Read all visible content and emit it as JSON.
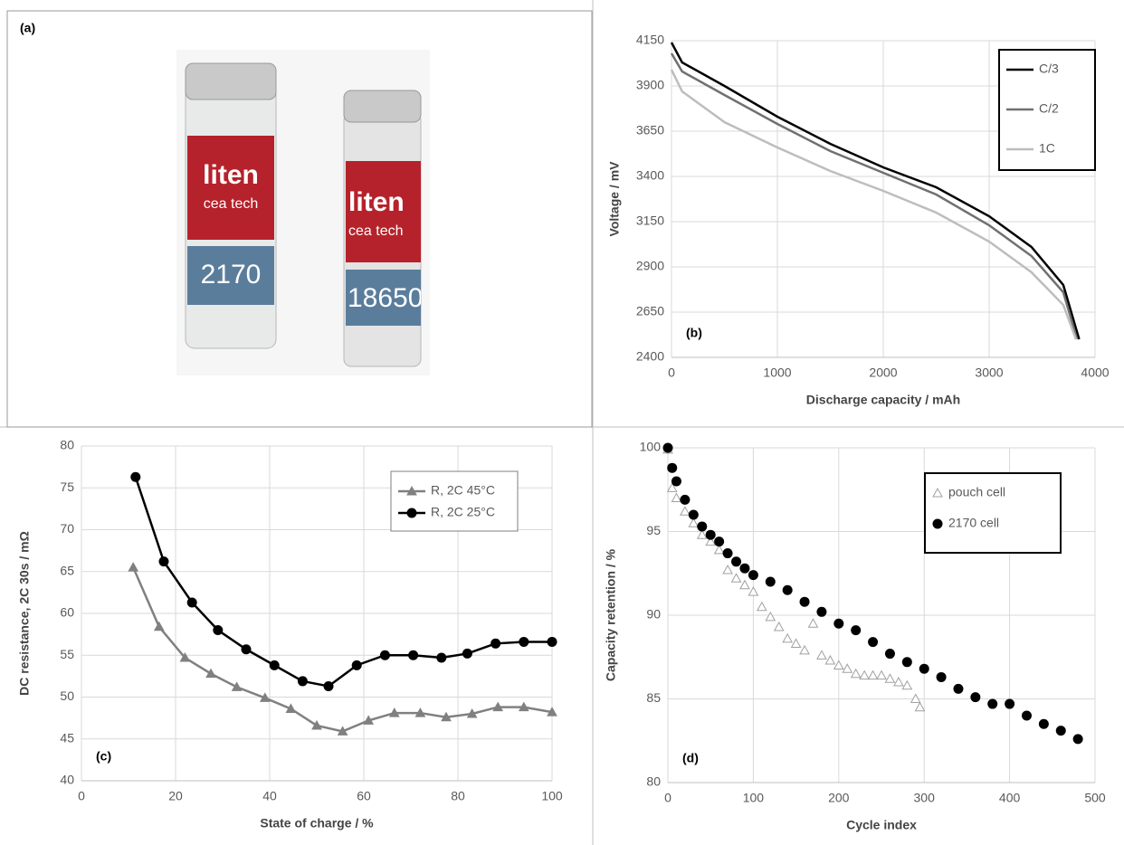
{
  "panel_a": {
    "label": "(a)",
    "cells": [
      {
        "brand": "liten",
        "sub": "cea tech",
        "model": "2170"
      },
      {
        "brand": "liten",
        "sub": "cea tech",
        "model": "18650"
      }
    ]
  },
  "chart_data": [
    {
      "type": "line",
      "panel_label": "(b)",
      "x_label": "Discharge capacity / mAh",
      "y_label": "Voltage / mV",
      "xlim": [
        0,
        4000
      ],
      "xticks": [
        0,
        1000,
        2000,
        3000,
        4000
      ],
      "ylim": [
        2400,
        4150
      ],
      "yticks": [
        2400,
        2650,
        2900,
        3150,
        3400,
        3650,
        3900,
        4150
      ],
      "grid": true,
      "legend": "upper right",
      "series": [
        {
          "name": "C/3",
          "color": "#000000",
          "x": [
            0,
            100,
            500,
            1000,
            1500,
            2000,
            2500,
            3000,
            3400,
            3700,
            3850
          ],
          "values": [
            4140,
            4030,
            3900,
            3730,
            3580,
            3450,
            3340,
            3180,
            3010,
            2800,
            2500
          ]
        },
        {
          "name": "C/2",
          "color": "#707070",
          "x": [
            0,
            100,
            500,
            1000,
            1500,
            2000,
            2500,
            3000,
            3400,
            3700,
            3830
          ],
          "values": [
            4080,
            3980,
            3850,
            3690,
            3540,
            3420,
            3300,
            3130,
            2960,
            2760,
            2500
          ]
        },
        {
          "name": "1C",
          "color": "#bdbdbd",
          "x": [
            0,
            100,
            500,
            1000,
            1500,
            2000,
            2500,
            3000,
            3400,
            3700,
            3820
          ],
          "values": [
            3990,
            3870,
            3700,
            3560,
            3430,
            3320,
            3200,
            3040,
            2870,
            2690,
            2500
          ]
        }
      ]
    },
    {
      "type": "line",
      "panel_label": "(c)",
      "x_label": "State of charge / %",
      "y_label": "DC resistance, 2C 30s / mΩ",
      "xlim": [
        0,
        100
      ],
      "xticks": [
        0,
        20,
        40,
        60,
        80,
        100
      ],
      "ylim": [
        40,
        80
      ],
      "yticks": [
        40,
        45,
        50,
        55,
        60,
        65,
        70,
        75,
        80
      ],
      "grid": true,
      "legend": "upper right",
      "series": [
        {
          "name": "R, 2C 45°C",
          "color": "#808080",
          "marker": "triangle",
          "x": [
            11,
            16.5,
            22,
            27.5,
            33,
            39,
            44.5,
            50,
            55.5,
            61,
            66.5,
            72,
            77.5,
            83,
            88.5,
            94,
            100
          ],
          "values": [
            65.5,
            58.4,
            54.7,
            52.8,
            51.2,
            49.9,
            48.6,
            46.6,
            45.9,
            47.2,
            48.1,
            48.1,
            47.6,
            48.0,
            48.8,
            48.8,
            48.2
          ]
        },
        {
          "name": "R, 2C 25°C",
          "color": "#000000",
          "marker": "circle",
          "x": [
            11.5,
            17.5,
            23.5,
            29,
            35,
            41,
            47,
            52.5,
            58.5,
            64.5,
            70.5,
            76.5,
            82,
            88,
            94,
            100
          ],
          "values": [
            76.3,
            66.2,
            61.3,
            58.0,
            55.7,
            53.8,
            51.9,
            51.3,
            53.8,
            55.0,
            55.0,
            54.7,
            55.2,
            56.4,
            56.6,
            56.6
          ]
        }
      ]
    },
    {
      "type": "scatter",
      "panel_label": "(d)",
      "x_label": "Cycle index",
      "y_label": "Capacity retention / %",
      "xlim": [
        0,
        500
      ],
      "xticks": [
        0,
        100,
        200,
        300,
        400,
        500
      ],
      "ylim": [
        80,
        100
      ],
      "yticks": [
        80,
        85,
        90,
        95,
        100
      ],
      "grid": true,
      "legend": "upper right",
      "series": [
        {
          "name": "pouch cell",
          "color": "#a0a0a0",
          "marker": "open-triangle",
          "x": [
            0,
            5,
            10,
            20,
            30,
            40,
            50,
            60,
            70,
            80,
            90,
            100,
            110,
            120,
            130,
            140,
            150,
            160,
            170,
            180,
            190,
            200,
            210,
            220,
            230,
            240,
            250,
            260,
            270,
            280,
            290,
            295
          ],
          "values": [
            99.9,
            97.6,
            97.0,
            96.2,
            95.5,
            94.8,
            94.4,
            93.9,
            92.7,
            92.2,
            91.8,
            91.4,
            90.5,
            89.9,
            89.3,
            88.6,
            88.3,
            87.9,
            89.5,
            87.6,
            87.3,
            87.0,
            86.8,
            86.5,
            86.4,
            86.4,
            86.4,
            86.2,
            86.0,
            85.8,
            85.0,
            84.5
          ]
        },
        {
          "name": "2170 cell",
          "color": "#000000",
          "marker": "circle",
          "x": [
            0,
            5,
            10,
            20,
            30,
            40,
            50,
            60,
            70,
            80,
            90,
            100,
            120,
            140,
            160,
            180,
            200,
            220,
            240,
            260,
            280,
            300,
            320,
            340,
            360,
            380,
            400,
            420,
            440,
            460,
            480
          ],
          "values": [
            100,
            98.8,
            98.0,
            96.9,
            96.0,
            95.3,
            94.8,
            94.4,
            93.7,
            93.2,
            92.8,
            92.4,
            92.0,
            91.5,
            90.8,
            90.2,
            89.5,
            89.1,
            88.4,
            87.7,
            87.2,
            86.8,
            86.3,
            85.6,
            85.1,
            84.7,
            84.7,
            84.0,
            83.5,
            83.1,
            82.6
          ]
        }
      ]
    }
  ]
}
